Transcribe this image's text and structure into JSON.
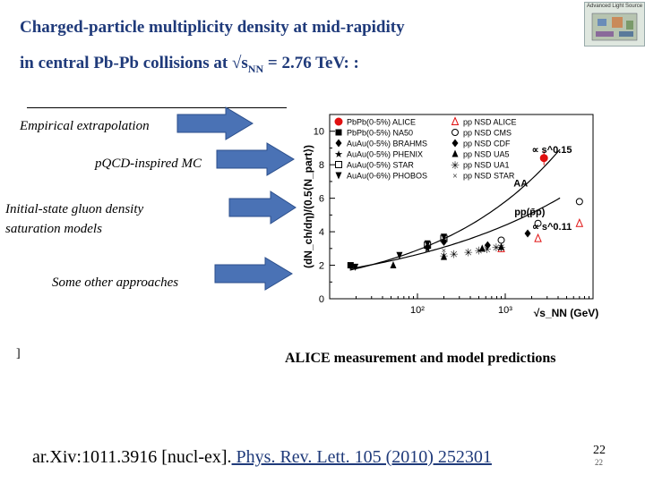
{
  "slide": {
    "title_line1": "Charged-particle multiplicity density at mid-rapidity",
    "title_line2_prefix": "in central Pb-Pb collisions at √s",
    "title_line2_sub": "NN",
    "title_line2_suffix": " = 2.76 TeV: :",
    "caption": "ALICE  measurement and  model predictions",
    "reference_prefix": "ar.Xiv:1011.3916 [nucl-ex].",
    "reference_link": " Phys. Rev. Lett. 105 (2010) 252301",
    "page_number": "22",
    "page_number_small": "22",
    "bracket_glyph": "]",
    "logo_text": "Advanced Light Source"
  },
  "model_labels": [
    {
      "text": "Empirical extrapolation"
    },
    {
      "text": "pQCD-inspired MC"
    },
    {
      "text": "Initial-state gluon density saturation models"
    },
    {
      "text": "Some other approaches"
    }
  ],
  "colors": {
    "title": "#1f3a7a",
    "arrow_fill": "#4a72b5",
    "arrow_stroke": "#2c4f8c",
    "alice_point": "#e01010"
  },
  "chart_data": {
    "type": "scatter",
    "xscale": "log",
    "xlim": [
      10,
      10000
    ],
    "ylim": [
      0,
      11
    ],
    "xlabel": "√s_NN (GeV)",
    "ylabel": "(dN_ch/dη)/(0.5⟨N_part⟩)",
    "x_ticks": [
      {
        "value": 100,
        "label": "10²"
      },
      {
        "value": 1000,
        "label": "10³"
      }
    ],
    "y_ticks": [
      {
        "value": 0,
        "label": "0"
      },
      {
        "value": 2,
        "label": "2"
      },
      {
        "value": 4,
        "label": "4"
      },
      {
        "value": 6,
        "label": "6"
      },
      {
        "value": 8,
        "label": "8"
      },
      {
        "value": 10,
        "label": "10"
      }
    ],
    "annotations": [
      {
        "text": "AA",
        "x": 1500,
        "y": 6.7
      },
      {
        "text": "pp(p̄p)",
        "x": 1900,
        "y": 5.0
      },
      {
        "text": "∝ s^0.15",
        "x": 3400,
        "y": 8.7
      },
      {
        "text": "∝ s^0.11",
        "x": 3400,
        "y": 4.1
      }
    ],
    "fits": [
      {
        "name": "AA fit",
        "label": "∝ s^0.15",
        "a": 0.73,
        "exp": 0.15,
        "xmin": 17,
        "xmax": 4200
      },
      {
        "name": "pp fit",
        "label": "∝ s^0.11",
        "a": 0.96,
        "exp": 0.11,
        "xmin": 17,
        "xmax": 4200
      }
    ],
    "series": [
      {
        "name": "PbPb(0-5%) ALICE",
        "marker": "circle-filled",
        "color": "#e01010",
        "points": [
          [
            2760,
            8.4
          ]
        ]
      },
      {
        "name": "PbPb(0-5%) NA50",
        "marker": "square-filled",
        "color": "#000000",
        "points": [
          [
            17.3,
            2.0
          ]
        ]
      },
      {
        "name": "AuAu(0-5%) BRAHMS",
        "marker": "diamond-filled",
        "color": "#000000",
        "points": [
          [
            130,
            3.1
          ],
          [
            200,
            3.4
          ]
        ]
      },
      {
        "name": "AuAu(0-5%) PHENIX",
        "marker": "star",
        "color": "#000000",
        "points": [
          [
            130,
            3.0
          ],
          [
            200,
            3.5
          ]
        ]
      },
      {
        "name": "AuAu(0-5%) STAR",
        "marker": "square-open",
        "color": "#000000",
        "points": [
          [
            130,
            3.2
          ],
          [
            200,
            3.6
          ]
        ]
      },
      {
        "name": "AuAu(0-6%) PHOBOS",
        "marker": "triangle-down-filled",
        "color": "#000000",
        "points": [
          [
            19.6,
            1.9
          ],
          [
            62.4,
            2.6
          ],
          [
            130,
            3.3
          ],
          [
            200,
            3.7
          ]
        ]
      },
      {
        "name": "pp NSD ALICE",
        "marker": "triangle-open",
        "color": "#e01010",
        "points": [
          [
            900,
            3.0
          ],
          [
            2360,
            3.6
          ],
          [
            7000,
            4.5
          ]
        ]
      },
      {
        "name": "pp NSD CMS",
        "marker": "circle-open",
        "color": "#000000",
        "points": [
          [
            900,
            3.5
          ],
          [
            2360,
            4.5
          ],
          [
            7000,
            5.8
          ]
        ]
      },
      {
        "name": "pp NSD CDF",
        "marker": "diamond-filled",
        "color": "#000000",
        "points": [
          [
            630,
            3.2
          ],
          [
            1800,
            3.9
          ]
        ]
      },
      {
        "name": "pp NSD UA5",
        "marker": "triangle-filled",
        "color": "#000000",
        "points": [
          [
            53,
            2.0
          ],
          [
            200,
            2.5
          ],
          [
            546,
            3.0
          ],
          [
            900,
            3.1
          ]
        ]
      },
      {
        "name": "pp NSD UA1",
        "marker": "asterisk",
        "color": "#000000",
        "points": [
          [
            200,
            2.6
          ],
          [
            260,
            2.7
          ],
          [
            380,
            2.8
          ],
          [
            500,
            2.9
          ],
          [
            620,
            3.0
          ],
          [
            790,
            3.1
          ],
          [
            900,
            3.1
          ]
        ]
      },
      {
        "name": "pp NSD STAR",
        "marker": "cross",
        "color": "#000000",
        "points": [
          [
            200,
            2.9
          ]
        ]
      }
    ]
  }
}
